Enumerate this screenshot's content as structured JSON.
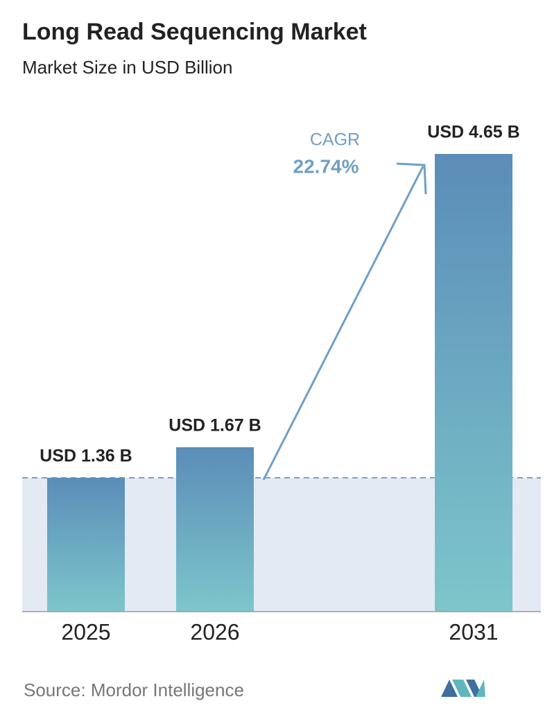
{
  "chart_data": {
    "type": "bar",
    "title": "Long Read Sequencing Market",
    "subtitle": "Market Size in USD Billion",
    "categories": [
      "2025",
      "2026",
      "2031"
    ],
    "values": [
      1.36,
      1.67,
      4.65
    ],
    "value_labels": [
      "USD 1.36 B",
      "USD 1.67 B",
      "USD 4.65 B"
    ],
    "color_top": "#5b8db8",
    "color_bottom": "#7dc6cb",
    "cagr_label": "CAGR",
    "cagr_value": "22.74%",
    "source": "Source:  Mordor Intelligence"
  }
}
